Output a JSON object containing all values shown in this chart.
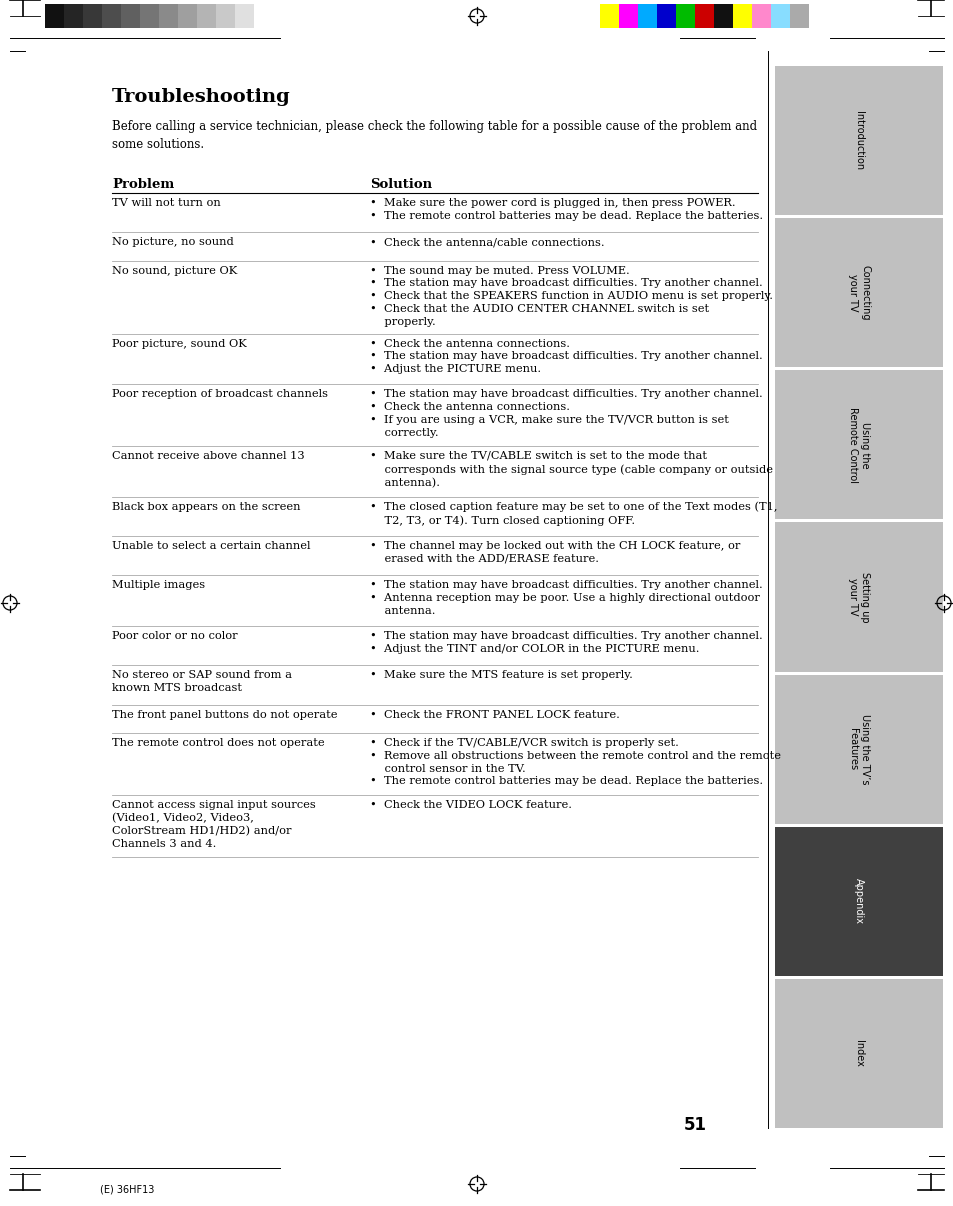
{
  "title": "Troubleshooting",
  "intro": "Before calling a service technician, please check the following table for a possible cause of the problem and\nsome solutions.",
  "col_problem": "Problem",
  "col_solution": "Solution",
  "page_number": "51",
  "background": "#ffffff",
  "text_color": "#000000",
  "sidebar_labels": [
    "Introduction",
    "Connecting\nyour TV",
    "Using the\nRemote Control",
    "Setting up\nyour TV",
    "Using the TV’s\nFeatures",
    "Appendix",
    "Index"
  ],
  "sidebar_active_idx": 5,
  "sidebar_active_color": "#404040",
  "sidebar_inactive_color": "#c0c0c0",
  "rows": [
    {
      "problem": "TV will not turn on",
      "solution": "•  Make sure the power cord is plugged in, then press POWER.\n•  The remote control batteries may be dead. Replace the batteries."
    },
    {
      "problem": "No picture, no sound",
      "solution": "•  Check the antenna/cable connections."
    },
    {
      "problem": "No sound, picture OK",
      "solution": "•  The sound may be muted. Press VOLUME.\n•  The station may have broadcast difficulties. Try another channel.\n•  Check that the SPEAKERS function in AUDIO menu is set properly.\n•  Check that the AUDIO CENTER CHANNEL switch is set\n    properly."
    },
    {
      "problem": "Poor picture, sound OK",
      "solution": "•  Check the antenna connections.\n•  The station may have broadcast difficulties. Try another channel.\n•  Adjust the PICTURE menu."
    },
    {
      "problem": "Poor reception of broadcast channels",
      "solution": "•  The station may have broadcast difficulties. Try another channel.\n•  Check the antenna connections.\n•  If you are using a VCR, make sure the TV/VCR button is set\n    correctly."
    },
    {
      "problem": "Cannot receive above channel 13",
      "solution": "•  Make sure the TV/CABLE switch is set to the mode that\n    corresponds with the signal source type (cable company or outside\n    antenna)."
    },
    {
      "problem": "Black box appears on the screen",
      "solution": "•  The closed caption feature may be set to one of the Text modes (T1,\n    T2, T3, or T4). Turn closed captioning OFF."
    },
    {
      "problem": "Unable to select a certain channel",
      "solution": "•  The channel may be locked out with the CH LOCK feature, or\n    erased with the ADD/ERASE feature."
    },
    {
      "problem": "Multiple images",
      "solution": "•  The station may have broadcast difficulties. Try another channel.\n•  Antenna reception may be poor. Use a highly directional outdoor\n    antenna."
    },
    {
      "problem": "Poor color or no color",
      "solution": "•  The station may have broadcast difficulties. Try another channel.\n•  Adjust the TINT and/or COLOR in the PICTURE menu."
    },
    {
      "problem": "No stereo or SAP sound from a\nknown MTS broadcast",
      "solution": "•  Make sure the MTS feature is set properly."
    },
    {
      "problem": "The front panel buttons do not operate",
      "solution": "•  Check the FRONT PANEL LOCK feature."
    },
    {
      "problem": "The remote control does not operate",
      "solution": "•  Check if the TV/CABLE/VCR switch is properly set.\n•  Remove all obstructions between the remote control and the remote\n    control sensor in the TV.\n•  The remote control batteries may be dead. Replace the batteries."
    },
    {
      "problem": "Cannot access signal input sources\n(Video1, Video2, Video3,\nColorStream HD1/HD2) and/or\nChannels 3 and 4.",
      "solution": "•  Check the VIDEO LOCK feature."
    }
  ],
  "color_bars_left": [
    "#111111",
    "#252525",
    "#383838",
    "#4d4d4d",
    "#606060",
    "#757575",
    "#8a8a8a",
    "#9f9f9f",
    "#b4b4b4",
    "#c9c9c9",
    "#e0e0e0"
  ],
  "color_bars_right": [
    "#ffff00",
    "#ff00ff",
    "#00aaff",
    "#0000cc",
    "#00bb00",
    "#cc0000",
    "#111111",
    "#ffff00",
    "#ff88cc",
    "#88ddff",
    "#aaaaaa"
  ],
  "fig_width": 9.54,
  "fig_height": 12.06,
  "dpi": 100
}
